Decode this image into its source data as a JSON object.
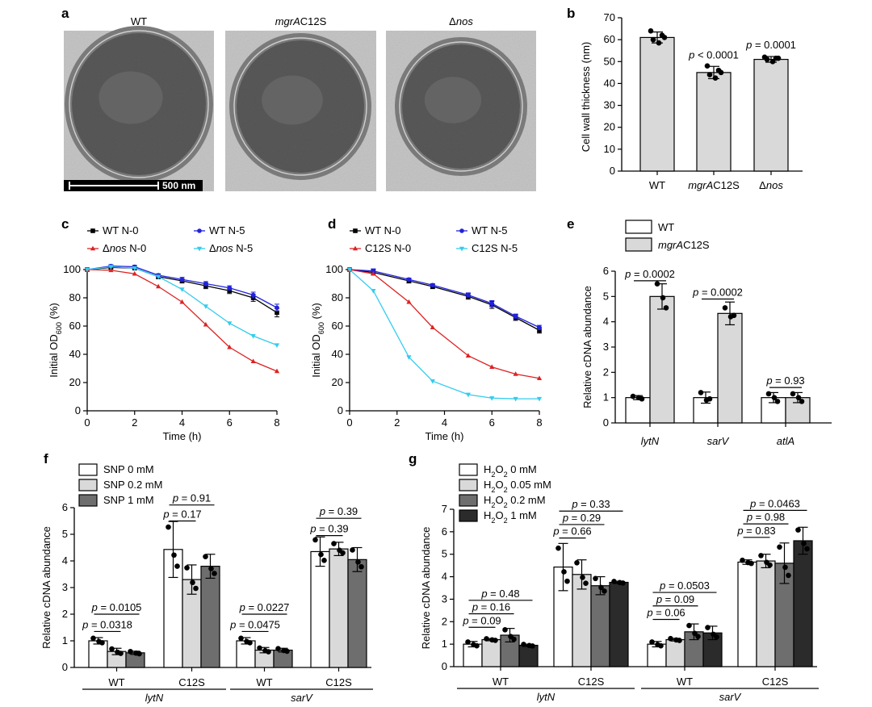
{
  "colors": {
    "white_bar": "#ffffff",
    "light_gray": "#d9d9d9",
    "mid_gray": "#a6a6a6",
    "dark_gray": "#6e6e6e",
    "darkest_gray": "#2b2b2b",
    "black": "#000000",
    "blue": "#2222dd",
    "red": "#dd2222",
    "cyan": "#33ccee",
    "em_background": "#c8c8c8",
    "em_cell": "#5a5a5a"
  },
  "panel_a": {
    "letter": "a",
    "images": [
      {
        "label": "WT",
        "icon": "tem-micrograph-wt"
      },
      {
        "label_parts": [
          {
            "t": "mgrA",
            "i": true
          },
          {
            "t": "C12S",
            "i": false
          }
        ],
        "icon": "tem-micrograph-c12s"
      },
      {
        "label_parts": [
          {
            "t": "Δ",
            "i": false
          },
          {
            "t": "nos",
            "i": true
          }
        ],
        "icon": "tem-micrograph-nos"
      }
    ],
    "scale_bar": "500 nm"
  },
  "chart_data": [
    {
      "id": "b",
      "letter": "b",
      "type": "bar",
      "ylabel": "Cell wall thickness (nm)",
      "ylim": [
        0,
        70
      ],
      "yticks": [
        0,
        10,
        20,
        30,
        40,
        50,
        60,
        70
      ],
      "categories": [
        "WT",
        "mgrAC12S",
        "Δnos"
      ],
      "category_parts": [
        [
          {
            "t": "WT",
            "i": false
          }
        ],
        [
          {
            "t": "mgrA",
            "i": true
          },
          {
            "t": "C12S",
            "i": false
          }
        ],
        [
          {
            "t": "Δ",
            "i": false
          },
          {
            "t": "nos",
            "i": true
          }
        ]
      ],
      "values": [
        61,
        45,
        51
      ],
      "errors": [
        2.5,
        2.8,
        1.3
      ],
      "points": [
        [
          64,
          62,
          60,
          58.5,
          61
        ],
        [
          48,
          46,
          44,
          42.5,
          45
        ],
        [
          52,
          51.5,
          51,
          50,
          51.5
        ]
      ],
      "annotations": [
        {
          "category": 1,
          "parts": [
            {
              "t": "p",
              "i": true
            },
            {
              "t": " < 0.0001",
              "i": false
            }
          ]
        },
        {
          "category": 2,
          "parts": [
            {
              "t": "p",
              "i": true
            },
            {
              "t": " = 0.0001",
              "i": false
            }
          ]
        }
      ]
    },
    {
      "id": "c",
      "letter": "c",
      "type": "line",
      "xlabel": "Time (h)",
      "xlim": [
        0,
        8
      ],
      "xticks": [
        0,
        2,
        4,
        6,
        8
      ],
      "ylabel": "Initial OD600 (%)",
      "ylim": [
        0,
        100
      ],
      "yticks": [
        0,
        20,
        40,
        60,
        80,
        100
      ],
      "legend": "top",
      "series": [
        {
          "name_parts": [
            {
              "t": "WT N-0",
              "i": false
            }
          ],
          "marker": "square",
          "color": "black",
          "x": [
            0,
            1,
            2,
            3,
            4,
            5,
            6,
            7,
            8
          ],
          "y": [
            100,
            101.5,
            101,
            95,
            92,
            88.5,
            85,
            80,
            69.5
          ],
          "err": [
            0,
            1,
            1,
            1.5,
            1.5,
            2,
            2,
            2.5,
            3
          ]
        },
        {
          "name_parts": [
            {
              "t": "WT N-5",
              "i": false
            }
          ],
          "marker": "circle",
          "color": "blue",
          "x": [
            0,
            1,
            2,
            3,
            4,
            5,
            6,
            7,
            8
          ],
          "y": [
            100,
            102.5,
            102,
            96,
            93,
            90,
            87,
            82,
            73
          ],
          "err": [
            0,
            1,
            1,
            1,
            1.5,
            1.5,
            1.5,
            2,
            2.5
          ]
        },
        {
          "name_parts": [
            {
              "t": "Δ",
              "i": false
            },
            {
              "t": "nos",
              "i": true
            },
            {
              "t": " N-0",
              "i": false
            }
          ],
          "marker": "triangle-up",
          "color": "red",
          "x": [
            0,
            1,
            2,
            3,
            4,
            5,
            6,
            7,
            8
          ],
          "y": [
            100,
            99.5,
            97,
            88,
            77,
            61,
            45,
            35,
            28
          ],
          "err": [
            0,
            0.5,
            0.5,
            0.5,
            0.5,
            0.5,
            0.5,
            0.5,
            0.5
          ]
        },
        {
          "name_parts": [
            {
              "t": "Δ",
              "i": false
            },
            {
              "t": "nos",
              "i": true
            },
            {
              "t": " N-5",
              "i": false
            }
          ],
          "marker": "triangle-down",
          "color": "cyan",
          "x": [
            0,
            1,
            2,
            3,
            4,
            5,
            6,
            7,
            8
          ],
          "y": [
            100,
            102,
            101,
            95,
            86,
            74,
            62,
            53,
            46.5
          ],
          "err": [
            0,
            0.5,
            0.5,
            0.5,
            0.5,
            0.5,
            0.5,
            0.5,
            0.5
          ]
        }
      ]
    },
    {
      "id": "d",
      "letter": "d",
      "type": "line",
      "xlabel": "Time (h)",
      "xlim": [
        0,
        8
      ],
      "xticks": [
        0,
        2,
        4,
        6,
        8
      ],
      "ylabel": "Initial OD600 (%)",
      "ylim": [
        0,
        100
      ],
      "yticks": [
        0,
        20,
        40,
        60,
        80,
        100
      ],
      "legend": "top",
      "series": [
        {
          "name_parts": [
            {
              "t": "WT N-0",
              "i": false
            }
          ],
          "marker": "square",
          "color": "black",
          "x": [
            0,
            1,
            2.5,
            3.5,
            5,
            6,
            7,
            8
          ],
          "y": [
            100,
            98,
            92,
            88,
            81,
            75,
            66,
            57
          ],
          "err": [
            0,
            2,
            1.5,
            1.5,
            2,
            2.5,
            2,
            2
          ]
        },
        {
          "name_parts": [
            {
              "t": "WT N-5",
              "i": false
            }
          ],
          "marker": "circle",
          "color": "blue",
          "x": [
            0,
            1,
            2.5,
            3.5,
            5,
            6,
            7,
            8
          ],
          "y": [
            100,
            99,
            93,
            89,
            82,
            76,
            67,
            59
          ],
          "err": [
            0,
            1.5,
            1,
            1,
            1.5,
            2,
            1.5,
            1.5
          ]
        },
        {
          "name_parts": [
            {
              "t": "C12S N-0",
              "i": false
            }
          ],
          "marker": "triangle-up",
          "color": "red",
          "x": [
            0,
            1,
            2.5,
            3.5,
            5,
            6,
            7,
            8
          ],
          "y": [
            100,
            97,
            77,
            59,
            39,
            31,
            26,
            23
          ],
          "err": [
            0,
            0.5,
            0.5,
            0.5,
            0.5,
            0.5,
            0.5,
            0.5
          ]
        },
        {
          "name_parts": [
            {
              "t": "C12S N-5",
              "i": false
            }
          ],
          "marker": "triangle-down",
          "color": "cyan",
          "x": [
            0,
            1,
            2.5,
            3.5,
            5,
            6,
            7,
            8
          ],
          "y": [
            100,
            85,
            38,
            21,
            11.5,
            9,
            8.5,
            8.5
          ],
          "err": [
            0,
            0.5,
            0.5,
            0.5,
            0.5,
            0.5,
            0.5,
            0.5
          ]
        }
      ]
    },
    {
      "id": "e",
      "letter": "e",
      "type": "bar",
      "ylabel": "Relative cDNA abundance",
      "ylim": [
        0,
        6
      ],
      "yticks": [
        0,
        1,
        2,
        3,
        4,
        5,
        6
      ],
      "categories": [
        "lytN",
        "sarV",
        "atlA"
      ],
      "legend": [
        {
          "parts": [
            {
              "t": "WT",
              "i": false
            }
          ],
          "color": "white_bar"
        },
        {
          "parts": [
            {
              "t": "mgrA",
              "i": true
            },
            {
              "t": "C12S",
              "i": false
            }
          ],
          "color": "light_gray"
        }
      ],
      "series": [
        {
          "name": "WT",
          "color": "white_bar",
          "values": [
            1.0,
            1.0,
            1.0
          ],
          "errors": [
            0.08,
            0.22,
            0.2
          ],
          "points": [
            [
              1.05,
              0.95,
              1.0
            ],
            [
              1.2,
              0.95,
              0.9
            ],
            [
              1.15,
              0.85,
              1.0
            ]
          ]
        },
        {
          "name": "mgrAC12S",
          "color": "light_gray",
          "values": [
            5.0,
            4.33,
            1.0
          ],
          "errors": [
            0.5,
            0.45,
            0.2
          ],
          "points": [
            [
              5.5,
              4.55,
              4.95
            ],
            [
              4.55,
              4.25,
              4.2
            ],
            [
              1.15,
              0.85,
              1.0
            ]
          ]
        }
      ],
      "comparisons": [
        {
          "group": 0,
          "from": 0,
          "to": 1,
          "level": 5.62,
          "p": "0.0002"
        },
        {
          "group": 1,
          "from": 0,
          "to": 1,
          "level": 4.9,
          "p": "0.0002"
        },
        {
          "group": 2,
          "from": 0,
          "to": 1,
          "level": 1.4,
          "p": "0.93"
        }
      ]
    },
    {
      "id": "f",
      "letter": "f",
      "type": "bar",
      "ylabel": "Relative cDNA abundance",
      "ylim": [
        0,
        6
      ],
      "yticks": [
        0,
        1,
        2,
        3,
        4,
        5,
        6
      ],
      "categories": [
        "WT",
        "C12S",
        "WT",
        "C12S"
      ],
      "group_labels": [
        "lytN",
        "sarV"
      ],
      "legend": [
        {
          "parts": [
            {
              "t": "SNP 0 mM",
              "i": false
            }
          ],
          "color": "white_bar"
        },
        {
          "parts": [
            {
              "t": "SNP 0.2 mM",
              "i": false
            }
          ],
          "color": "light_gray"
        },
        {
          "parts": [
            {
              "t": "SNP 1 mM",
              "i": false
            }
          ],
          "color": "dark_gray"
        }
      ],
      "series": [
        {
          "name": "SNP 0 mM",
          "color": "white_bar",
          "values": [
            1.0,
            4.43,
            1.0,
            4.35
          ],
          "errors": [
            0.12,
            1.05,
            0.12,
            0.55
          ]
        },
        {
          "name": "SNP 0.2 mM",
          "color": "light_gray",
          "values": [
            0.6,
            3.3,
            0.65,
            4.45
          ],
          "errors": [
            0.12,
            0.55,
            0.1,
            0.25
          ]
        },
        {
          "name": "SNP 1 mM",
          "color": "dark_gray",
          "values": [
            0.55,
            3.8,
            0.65,
            4.05
          ],
          "errors": [
            0.06,
            0.45,
            0.07,
            0.45
          ]
        }
      ],
      "comparisons": [
        {
          "group": 0,
          "from": 0,
          "to": 1,
          "level": 1.35,
          "p": "0.0318"
        },
        {
          "group": 0,
          "from": 0,
          "to": 2,
          "level": 2.0,
          "p": "0.0105"
        },
        {
          "group": 1,
          "from": 0,
          "to": 1,
          "level": 5.5,
          "p": "0.17"
        },
        {
          "group": 1,
          "from": 0,
          "to": 2,
          "level": 6.1,
          "p": "0.91"
        },
        {
          "group": 2,
          "from": 0,
          "to": 1,
          "level": 1.35,
          "p": "0.0475"
        },
        {
          "group": 2,
          "from": 0,
          "to": 2,
          "level": 2.0,
          "p": "0.0227"
        },
        {
          "group": 3,
          "from": 0,
          "to": 1,
          "level": 4.95,
          "p": "0.39"
        },
        {
          "group": 3,
          "from": 0,
          "to": 2,
          "level": 5.6,
          "p": "0.39"
        }
      ]
    },
    {
      "id": "g",
      "letter": "g",
      "type": "bar",
      "ylabel": "Relative cDNA abundance",
      "ylim": [
        0,
        7
      ],
      "yticks": [
        0,
        1,
        2,
        3,
        4,
        5,
        6,
        7
      ],
      "categories": [
        "WT",
        "C12S",
        "WT",
        "C12S"
      ],
      "group_labels": [
        "lytN",
        "sarV"
      ],
      "legend": [
        {
          "parts": [
            {
              "t": "H",
              "i": false
            },
            {
              "t": "2",
              "sub": true
            },
            {
              "t": "O",
              "i": false
            },
            {
              "t": "2",
              "sub": true
            },
            {
              "t": " 0 mM",
              "i": false
            }
          ],
          "color": "white_bar"
        },
        {
          "parts": [
            {
              "t": "H",
              "i": false
            },
            {
              "t": "2",
              "sub": true
            },
            {
              "t": "O",
              "i": false
            },
            {
              "t": "2",
              "sub": true
            },
            {
              "t": " 0.05 mM",
              "i": false
            }
          ],
          "color": "light_gray"
        },
        {
          "parts": [
            {
              "t": "H",
              "i": false
            },
            {
              "t": "2",
              "sub": true
            },
            {
              "t": "O",
              "i": false
            },
            {
              "t": "2",
              "sub": true
            },
            {
              "t": " 0.2 mM",
              "i": false
            }
          ],
          "color": "dark_gray"
        },
        {
          "parts": [
            {
              "t": "H",
              "i": false
            },
            {
              "t": "2",
              "sub": true
            },
            {
              "t": "O",
              "i": false
            },
            {
              "t": "2",
              "sub": true
            },
            {
              "t": " 1 mM",
              "i": false
            }
          ],
          "color": "darkest_gray"
        }
      ],
      "series": [
        {
          "name": "H2O2 0 mM",
          "color": "white_bar",
          "values": [
            1.0,
            4.43,
            1.0,
            4.65
          ],
          "errors": [
            0.12,
            1.05,
            0.12,
            0.1
          ]
        },
        {
          "name": "H2O2 0.05 mM",
          "color": "light_gray",
          "values": [
            1.2,
            4.1,
            1.2,
            4.7
          ],
          "errors": [
            0.05,
            0.65,
            0.06,
            0.3
          ]
        },
        {
          "name": "H2O2 0.2 mM",
          "color": "dark_gray",
          "values": [
            1.4,
            3.6,
            1.55,
            4.6
          ],
          "errors": [
            0.3,
            0.4,
            0.35,
            0.9
          ]
        },
        {
          "name": "H2O2 1 mM",
          "color": "darkest_gray",
          "values": [
            0.95,
            3.75,
            1.5,
            5.6
          ],
          "errors": [
            0.05,
            0.05,
            0.3,
            0.6
          ]
        }
      ],
      "comparisons": [
        {
          "group": 0,
          "from": 0,
          "to": 1,
          "level": 1.75,
          "p": "0.09"
        },
        {
          "group": 0,
          "from": 0,
          "to": 2,
          "level": 2.35,
          "p": "0.16"
        },
        {
          "group": 0,
          "from": 0,
          "to": 3,
          "level": 2.95,
          "p": "0.48"
        },
        {
          "group": 1,
          "from": 0,
          "to": 1,
          "level": 5.72,
          "p": "0.66"
        },
        {
          "group": 1,
          "from": 0,
          "to": 2,
          "level": 6.32,
          "p": "0.29"
        },
        {
          "group": 1,
          "from": 0,
          "to": 3,
          "level": 6.92,
          "p": "0.33"
        },
        {
          "group": 2,
          "from": 0,
          "to": 1,
          "level": 2.1,
          "p": "0.06"
        },
        {
          "group": 2,
          "from": 0,
          "to": 2,
          "level": 2.7,
          "p": "0.09"
        },
        {
          "group": 2,
          "from": 0,
          "to": 3,
          "level": 3.3,
          "p": "0.0503"
        },
        {
          "group": 3,
          "from": 0,
          "to": 1,
          "level": 5.75,
          "p": "0.83"
        },
        {
          "group": 3,
          "from": 0,
          "to": 2,
          "level": 6.35,
          "p": "0.98"
        },
        {
          "group": 3,
          "from": 0,
          "to": 3,
          "level": 6.95,
          "p": "0.0463"
        }
      ]
    }
  ]
}
